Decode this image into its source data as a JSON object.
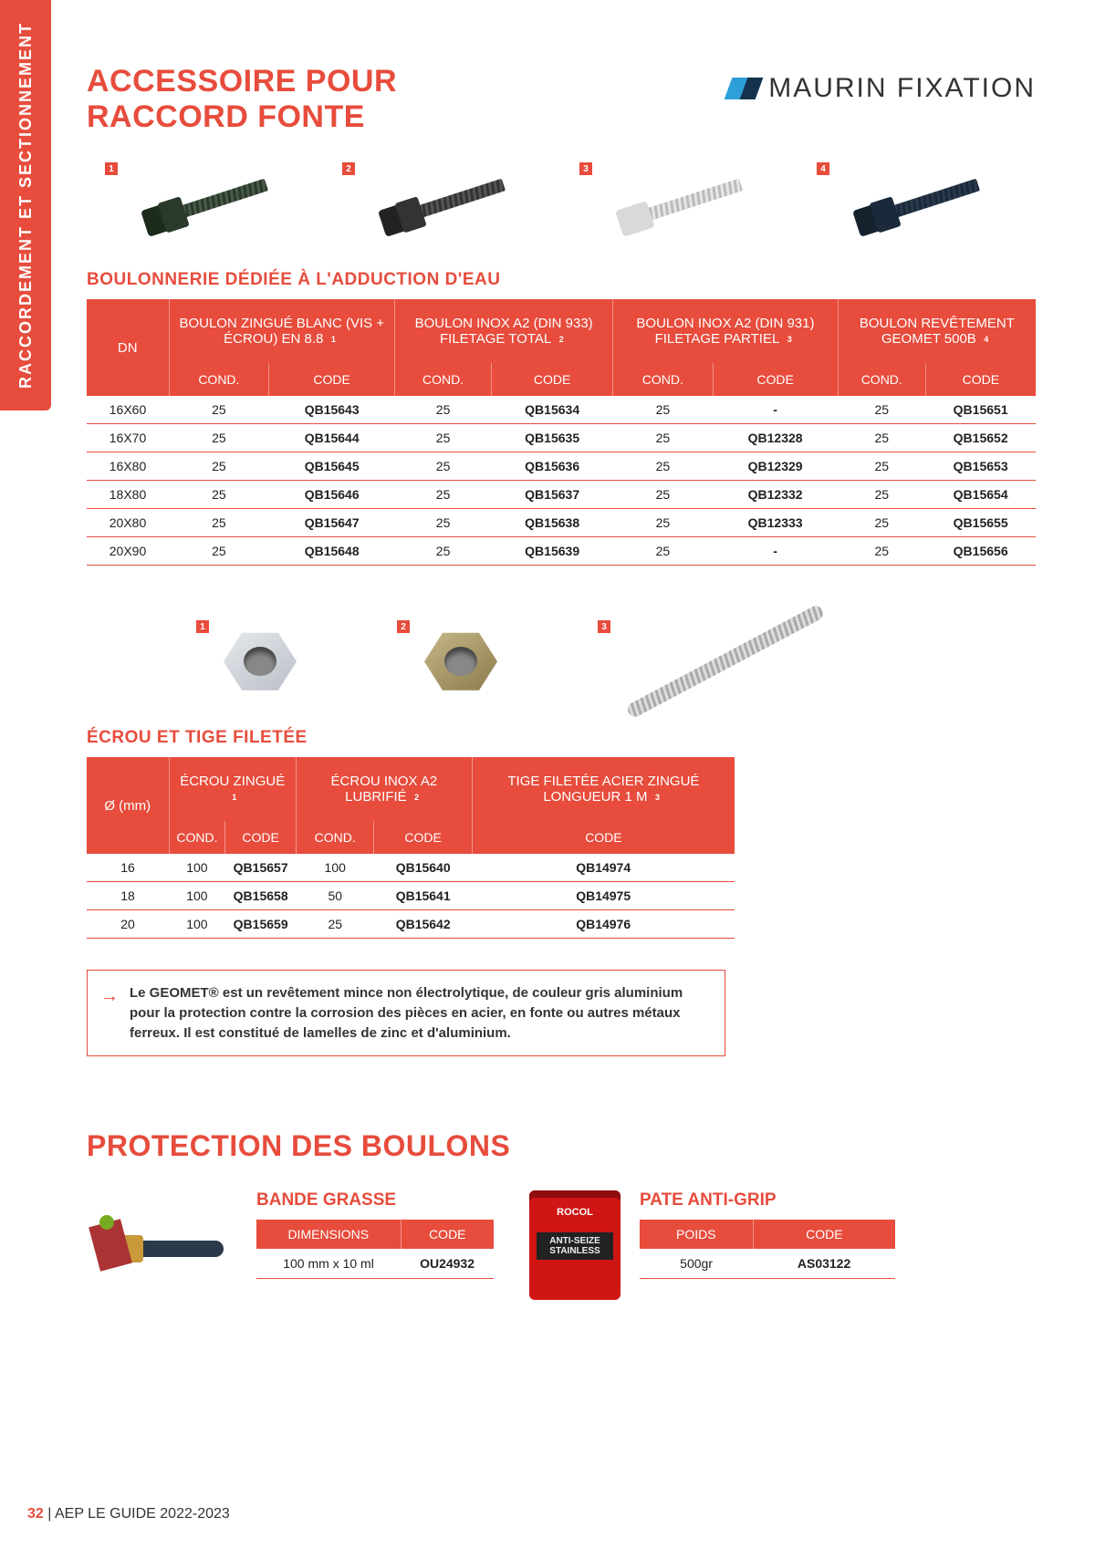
{
  "sideTab": "RACCORDEMENT ET SECTIONNEMENT",
  "title1": "ACCESSOIRE POUR",
  "title2": "RACCORD FONTE",
  "brand": "MAURIN FIXATION",
  "section1": "BOULONNERIE DÉDIÉE À L'ADDUCTION D'EAU",
  "table1": {
    "dn": "DN",
    "groups": [
      {
        "label": "BOULON ZINGUÉ BLANC (VIS + ÉCROU) EN 8.8",
        "idx": "1"
      },
      {
        "label": "BOULON INOX A2 (DIN 933) FILETAGE TOTAL",
        "idx": "2"
      },
      {
        "label": "BOULON INOX A2 (DIN 931) FILETAGE PARTIEL",
        "idx": "3"
      },
      {
        "label": "BOULON REVÊTEMENT GEOMET 500B",
        "idx": "4"
      }
    ],
    "sub": [
      "COND.",
      "CODE"
    ],
    "rows": [
      {
        "dn": "16X60",
        "c": [
          [
            "25",
            "QB15643"
          ],
          [
            "25",
            "QB15634"
          ],
          [
            "25",
            "-"
          ],
          [
            "25",
            "QB15651"
          ]
        ]
      },
      {
        "dn": "16X70",
        "c": [
          [
            "25",
            "QB15644"
          ],
          [
            "25",
            "QB15635"
          ],
          [
            "25",
            "QB12328"
          ],
          [
            "25",
            "QB15652"
          ]
        ]
      },
      {
        "dn": "16X80",
        "c": [
          [
            "25",
            "QB15645"
          ],
          [
            "25",
            "QB15636"
          ],
          [
            "25",
            "QB12329"
          ],
          [
            "25",
            "QB15653"
          ]
        ]
      },
      {
        "dn": "18X80",
        "c": [
          [
            "25",
            "QB15646"
          ],
          [
            "25",
            "QB15637"
          ],
          [
            "25",
            "QB12332"
          ],
          [
            "25",
            "QB15654"
          ]
        ]
      },
      {
        "dn": "20X80",
        "c": [
          [
            "25",
            "QB15647"
          ],
          [
            "25",
            "QB15638"
          ],
          [
            "25",
            "QB12333"
          ],
          [
            "25",
            "QB15655"
          ]
        ]
      },
      {
        "dn": "20X90",
        "c": [
          [
            "25",
            "QB15648"
          ],
          [
            "25",
            "QB15639"
          ],
          [
            "25",
            "-"
          ],
          [
            "25",
            "QB15656"
          ]
        ]
      }
    ]
  },
  "section2": "ÉCROU ET TIGE FILETÉE",
  "table2": {
    "dn": "Ø (mm)",
    "groups": [
      {
        "label": "ÉCROU ZINGUÉ",
        "idx": "1"
      },
      {
        "label": "ÉCROU INOX A2 LUBRIFIÉ",
        "idx": "2"
      },
      {
        "label": "TIGE FILETÉE ACIER ZINGUÉ LONGUEUR 1 M",
        "idx": "3"
      }
    ],
    "sub": [
      "COND.",
      "CODE"
    ],
    "subLast": "CODE",
    "rows": [
      {
        "dn": "16",
        "c": [
          [
            "100",
            "QB15657"
          ],
          [
            "100",
            "QB15640"
          ],
          [
            "QB14974"
          ]
        ]
      },
      {
        "dn": "18",
        "c": [
          [
            "100",
            "QB15658"
          ],
          [
            "50",
            "QB15641"
          ],
          [
            "QB14975"
          ]
        ]
      },
      {
        "dn": "20",
        "c": [
          [
            "100",
            "QB15659"
          ],
          [
            "25",
            "QB15642"
          ],
          [
            "QB14976"
          ]
        ]
      }
    ]
  },
  "note": "Le GEOMET® est un revêtement mince non électrolytique, de couleur gris aluminium pour la protection contre la corrosion des pièces en acier, en fonte ou autres métaux ferreux. Il est constitué de lamelles de zinc et d'aluminium.",
  "title3": "PROTECTION DES BOULONS",
  "bande": {
    "title": "BANDE GRASSE",
    "h": [
      "DIMENSIONS",
      "CODE"
    ],
    "row": [
      "100 mm x 10 ml",
      "OU24932"
    ]
  },
  "pate": {
    "title": "PATE ANTI-GRIP",
    "h": [
      "POIDS",
      "CODE"
    ],
    "row": [
      "500gr",
      "AS03122"
    ],
    "canBrand": "ROCOL",
    "canLabel": "ANTI-SEIZE STAINLESS"
  },
  "footer": {
    "page": "32",
    "sep": " | ",
    "text": "AEP LE GUIDE 2022-2023"
  },
  "imgBadges": [
    "1",
    "2",
    "3",
    "4"
  ],
  "imgBadges2": [
    "1",
    "2",
    "3"
  ]
}
